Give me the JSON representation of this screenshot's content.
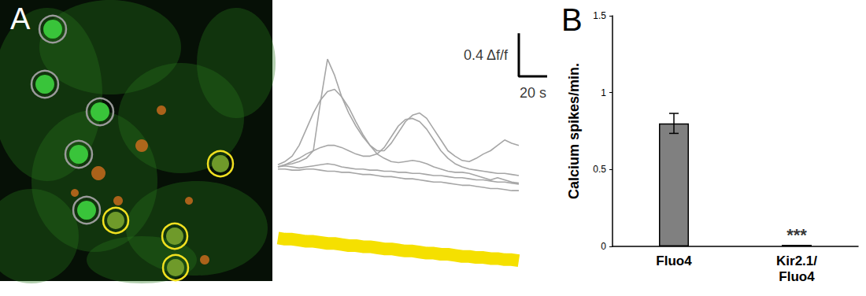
{
  "chart_data": [
    {
      "type": "line",
      "title": "A",
      "tick_labels": false,
      "grid": false,
      "xlim": [
        0,
        195
      ],
      "ylim": [
        -1,
        1.3
      ],
      "x": [
        0,
        5,
        10,
        15,
        20,
        25,
        30,
        35,
        40,
        45,
        50,
        55,
        60,
        65,
        70,
        75,
        80,
        85,
        90,
        95,
        100,
        105,
        110,
        115,
        120,
        125,
        130,
        135,
        140,
        145,
        150,
        155,
        160,
        165,
        170
      ],
      "series": [
        {
          "color": "#a6a6a6",
          "values": [
            0.0,
            0.02,
            0.03,
            0.05,
            0.08,
            0.15,
            0.6,
            1.0,
            0.85,
            0.65,
            0.5,
            0.38,
            0.28,
            0.2,
            0.12,
            0.08,
            0.05,
            0.04,
            0.05,
            0.06,
            0.05,
            0.03,
            0.0,
            -0.02,
            -0.04,
            -0.05,
            -0.05,
            -0.06,
            -0.08,
            -0.1,
            -0.12,
            -0.1,
            -0.12,
            -0.14,
            -0.15
          ]
        },
        {
          "color": "#a6a6a6",
          "values": [
            0.02,
            0.05,
            0.1,
            0.2,
            0.35,
            0.5,
            0.62,
            0.7,
            0.72,
            0.65,
            0.55,
            0.42,
            0.3,
            0.2,
            0.15,
            0.15,
            0.22,
            0.32,
            0.42,
            0.48,
            0.5,
            0.45,
            0.35,
            0.25,
            0.15,
            0.1,
            0.06,
            0.05,
            0.08,
            0.12,
            0.15,
            0.2,
            0.25,
            0.22,
            0.2
          ]
        },
        {
          "color": "#a6a6a6",
          "values": [
            0.0,
            0.02,
            0.05,
            0.08,
            0.12,
            0.15,
            0.18,
            0.2,
            0.2,
            0.18,
            0.15,
            0.12,
            0.1,
            0.1,
            0.12,
            0.18,
            0.28,
            0.38,
            0.44,
            0.45,
            0.42,
            0.35,
            0.25,
            0.15,
            0.08,
            0.03,
            0.0,
            -0.02,
            -0.03,
            -0.04,
            -0.05,
            -0.06,
            -0.06,
            -0.07,
            -0.08
          ]
        },
        {
          "color": "#a6a6a6",
          "values": [
            0.0,
            0.01,
            0.0,
            -0.01,
            0.0,
            0.01,
            0.02,
            0.03,
            0.02,
            0.0,
            -0.01,
            -0.02,
            -0.02,
            -0.03,
            -0.03,
            -0.04,
            -0.04,
            -0.05,
            -0.05,
            -0.06,
            -0.06,
            -0.07,
            -0.08,
            -0.08,
            -0.09,
            -0.1,
            -0.1,
            -0.11,
            -0.12,
            -0.12,
            -0.13,
            -0.14,
            -0.14,
            -0.15,
            -0.16
          ]
        },
        {
          "color": "#a6a6a6",
          "values": [
            -0.02,
            -0.02,
            -0.03,
            -0.03,
            -0.02,
            -0.02,
            -0.03,
            -0.04,
            -0.04,
            -0.05,
            -0.05,
            -0.06,
            -0.07,
            -0.07,
            -0.08,
            -0.09,
            -0.09,
            -0.1,
            -0.11,
            -0.11,
            -0.12,
            -0.13,
            -0.14,
            -0.14,
            -0.15,
            -0.16,
            -0.17,
            -0.17,
            -0.18,
            -0.19,
            -0.2,
            -0.2,
            -0.21,
            -0.22,
            -0.22
          ]
        },
        {
          "color": "#f5e000",
          "values": [
            -0.66,
            -0.67,
            -0.67,
            -0.68,
            -0.69,
            -0.69,
            -0.7,
            -0.71,
            -0.71,
            -0.72,
            -0.73,
            -0.73,
            -0.74,
            -0.74,
            -0.75,
            -0.76,
            -0.76,
            -0.77,
            -0.78,
            -0.78,
            -0.79,
            -0.8,
            -0.8,
            -0.81,
            -0.81,
            -0.82,
            -0.83,
            -0.83,
            -0.84,
            -0.84,
            -0.85,
            -0.85,
            -0.86,
            -0.86,
            -0.87
          ]
        }
      ],
      "scale_bar": {
        "x": 20,
        "x_label": "20 s",
        "y": 0.4,
        "y_label": "0.4 Δf/f"
      }
    },
    {
      "type": "bar",
      "title": "B",
      "grid": false,
      "categories": [
        "Fluo4",
        "Kir2.1/\nFluo4"
      ],
      "values": [
        0.8,
        0.01
      ],
      "errors": [
        0.065,
        0
      ],
      "color": "#808080",
      "y_label": "Calcium spikes/min.",
      "ylim": [
        0,
        1.5
      ],
      "yticks": [
        0,
        0.5,
        1,
        1.5
      ],
      "annotations": [
        {
          "text": "***",
          "category": "Kir2.1/\nFluo4"
        }
      ]
    }
  ]
}
